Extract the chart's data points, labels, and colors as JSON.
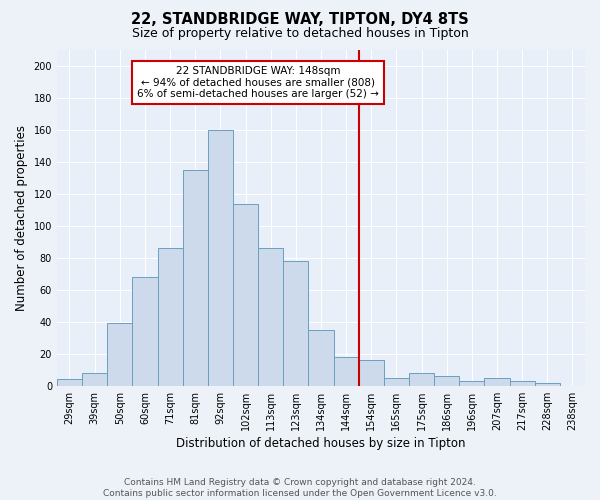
{
  "title": "22, STANDBRIDGE WAY, TIPTON, DY4 8TS",
  "subtitle": "Size of property relative to detached houses in Tipton",
  "xlabel": "Distribution of detached houses by size in Tipton",
  "ylabel": "Number of detached properties",
  "categories": [
    "29sqm",
    "39sqm",
    "50sqm",
    "60sqm",
    "71sqm",
    "81sqm",
    "92sqm",
    "102sqm",
    "113sqm",
    "123sqm",
    "134sqm",
    "144sqm",
    "154sqm",
    "165sqm",
    "175sqm",
    "186sqm",
    "196sqm",
    "207sqm",
    "217sqm",
    "228sqm",
    "238sqm"
  ],
  "values": [
    4,
    8,
    39,
    68,
    86,
    135,
    160,
    114,
    86,
    78,
    35,
    18,
    16,
    5,
    8,
    6,
    3,
    5,
    3,
    2,
    0
  ],
  "bar_width": 1.0,
  "bar_color": "#cddaeb",
  "bar_edge_color": "#6a9fc0",
  "vline_color": "#cc0000",
  "annotation_text": "22 STANDBRIDGE WAY: 148sqm\n← 94% of detached houses are smaller (808)\n6% of semi-detached houses are larger (52) →",
  "annotation_box_color": "#ffffff",
  "annotation_box_edge": "#cc0000",
  "ylim": [
    0,
    210
  ],
  "yticks": [
    0,
    20,
    40,
    60,
    80,
    100,
    120,
    140,
    160,
    180,
    200
  ],
  "footer": "Contains HM Land Registry data © Crown copyright and database right 2024.\nContains public sector information licensed under the Open Government Licence v3.0.",
  "background_color": "#e8eff8",
  "fig_background_color": "#edf2f9",
  "grid_color": "#ffffff",
  "title_fontsize": 10.5,
  "subtitle_fontsize": 9,
  "axis_label_fontsize": 8.5,
  "tick_fontsize": 7,
  "annotation_fontsize": 7.5,
  "footer_fontsize": 6.5
}
